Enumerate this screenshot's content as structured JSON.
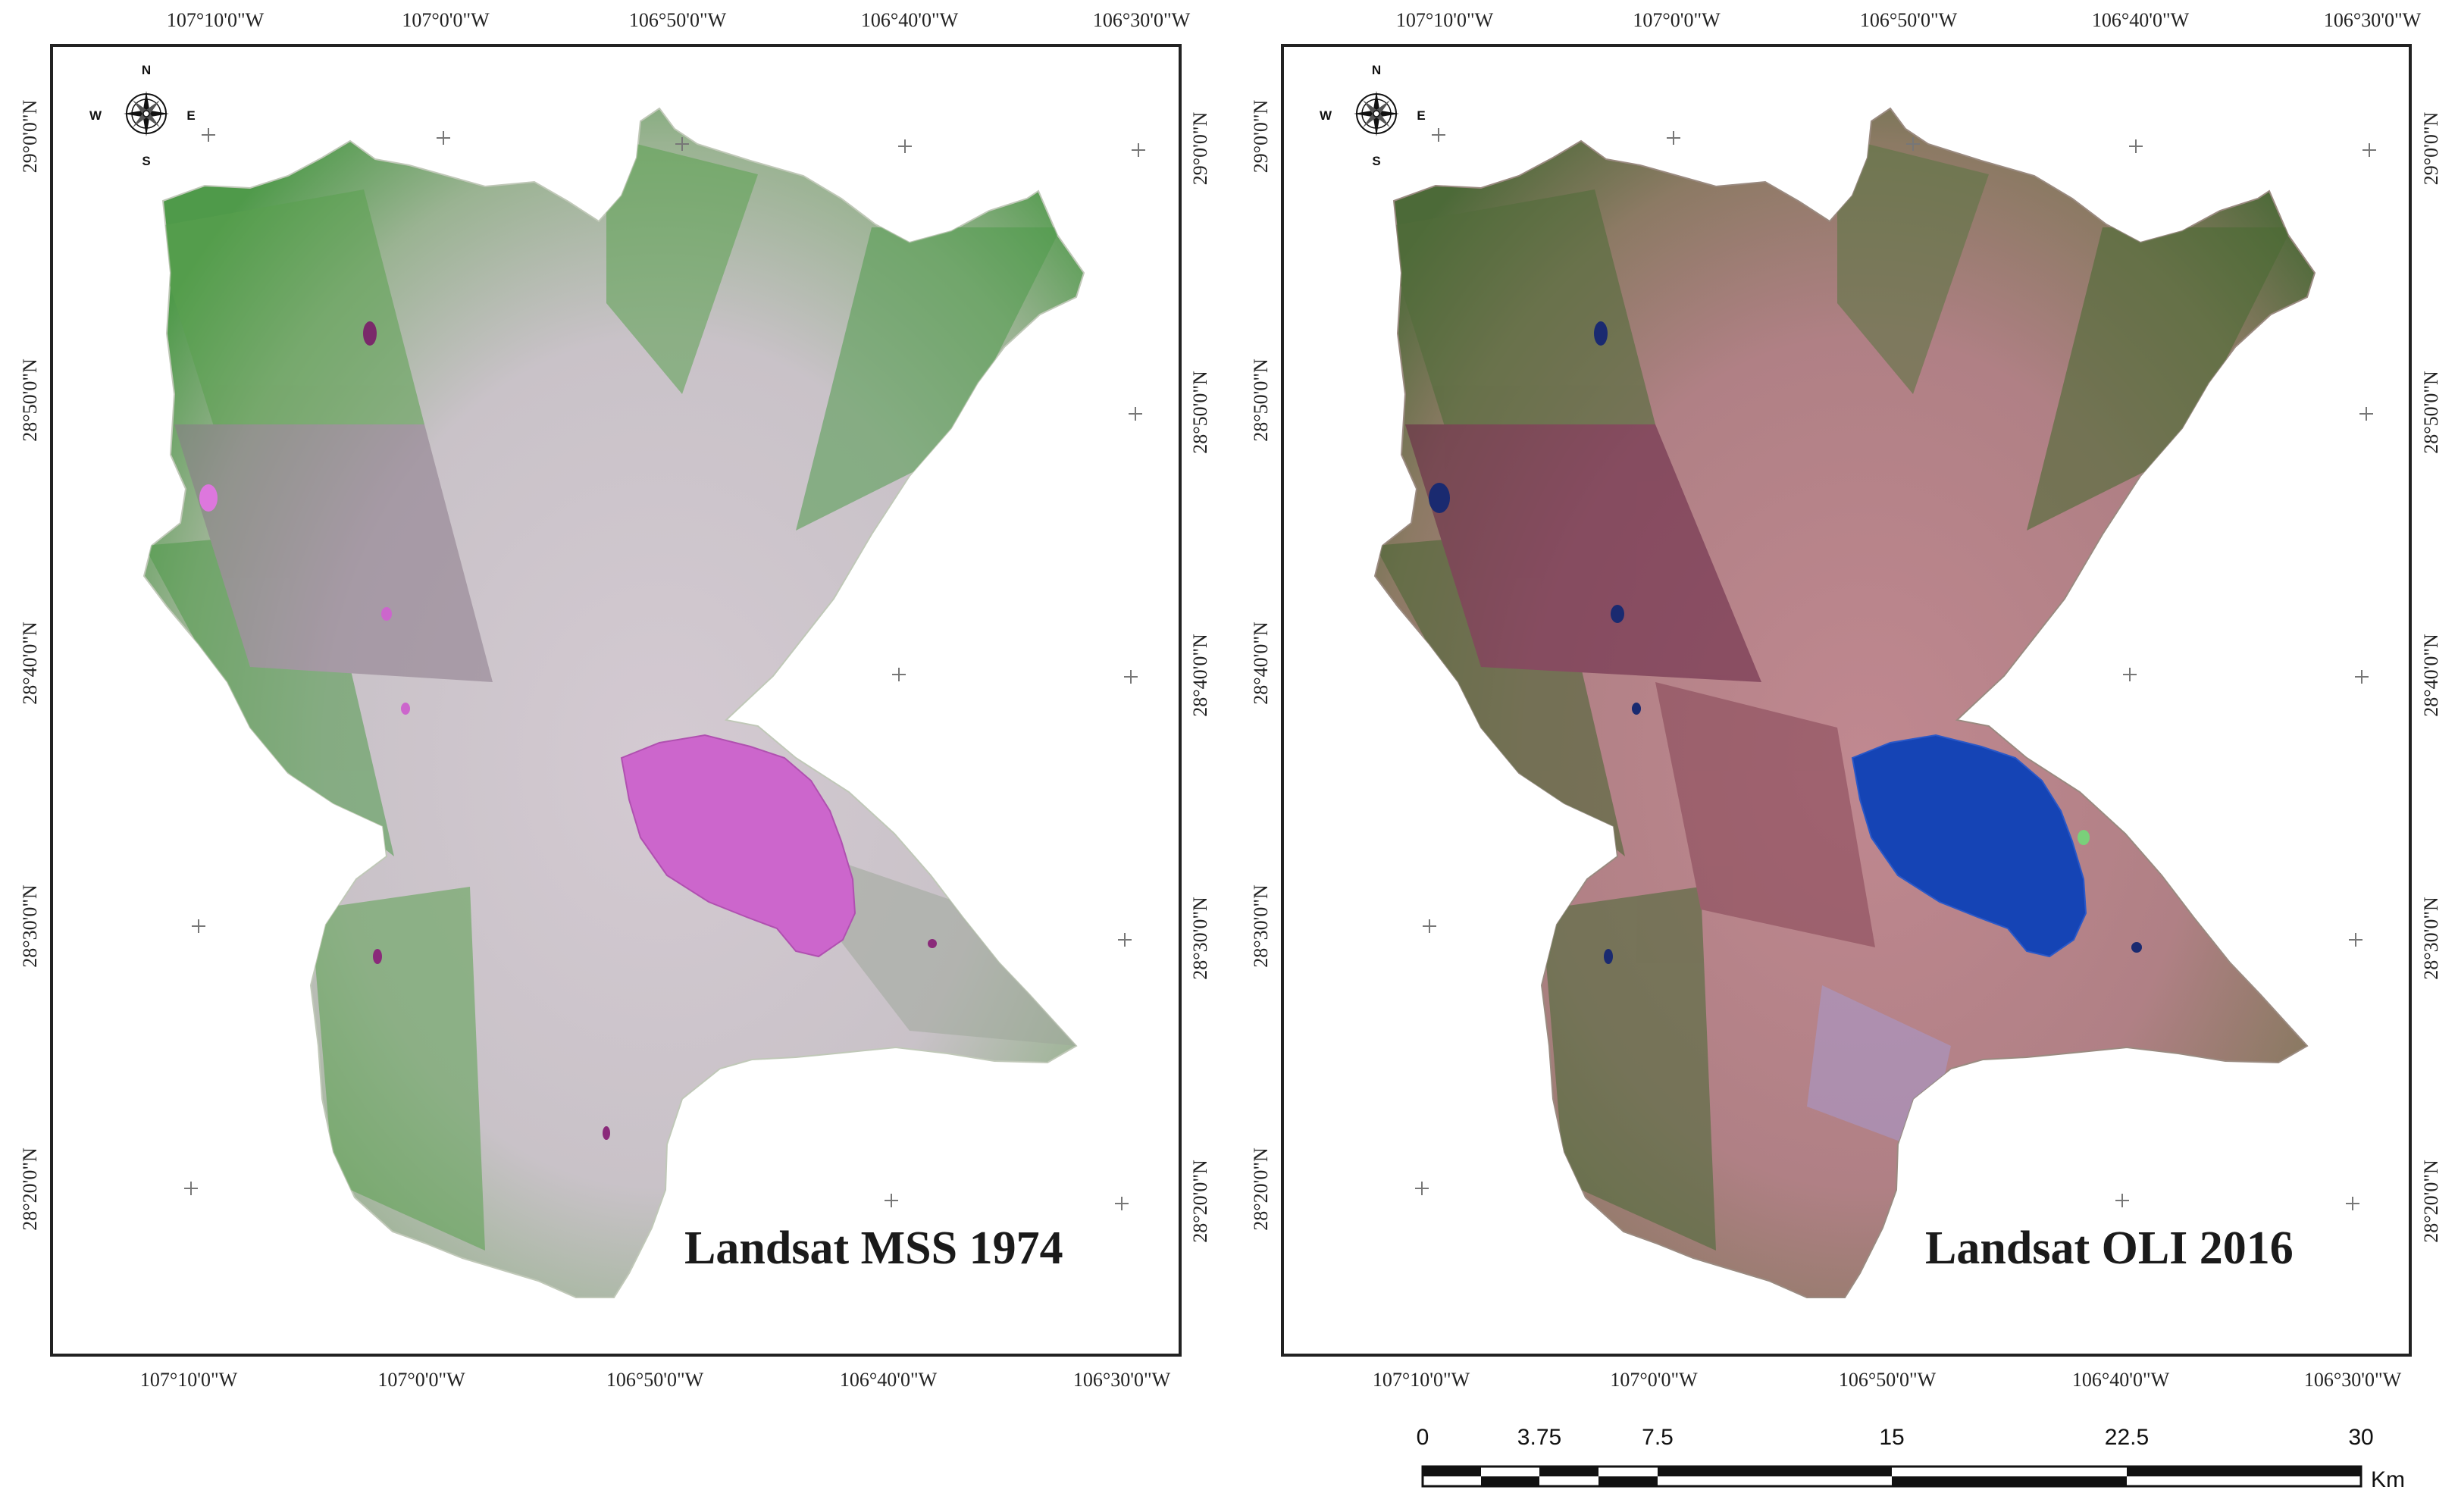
{
  "left_map": {
    "label": "Landsat MSS 1974",
    "top_ticks": [
      "107°10'0\"W",
      "107°0'0\"W",
      "106°50'0\"W",
      "106°40'0\"W",
      "106°30'0\"W"
    ],
    "bottom_ticks": [
      "107°10'0\"W",
      "107°0'0\"W",
      "106°50'0\"W",
      "106°40'0\"W",
      "106°30'0\"W"
    ],
    "left_ticks": [
      "29°0'0\"N",
      "28°50'0\"N",
      "28°40'0\"N",
      "28°30'0\"N",
      "28°20'0\"N"
    ],
    "right_ticks": [
      "29°0'0\"N",
      "28°50'0\"N",
      "28°40'0\"N",
      "28°30'0\"N",
      "28°20'0\"N"
    ]
  },
  "right_map": {
    "label": "Landsat OLI 2016",
    "top_ticks": [
      "107°10'0\"W",
      "107°0'0\"W",
      "106°50'0\"W",
      "106°40'0\"W",
      "106°30'0\"W"
    ],
    "bottom_ticks": [
      "107°10'0\"W",
      "107°0'0\"W",
      "106°50'0\"W",
      "106°40'0\"W",
      "106°30'0\"W"
    ],
    "left_ticks": [
      "29°0'0\"N",
      "28°50'0\"N",
      "28°40'0\"N",
      "28°30'0\"N",
      "28°20'0\"N"
    ],
    "right_ticks": [
      "29°0'0\"N",
      "28°50'0\"N",
      "28°40'0\"N",
      "28°30'0\"N",
      "28°20'0\"N"
    ]
  },
  "compass": {
    "n": "N",
    "s": "S",
    "e": "E",
    "w": "W"
  },
  "scale_bar": {
    "labels": [
      "0",
      "3.75",
      "7.5",
      "15",
      "22.5",
      "30"
    ],
    "unit": "Km"
  },
  "colors": {
    "mss_vegetation": "#4f9a4a",
    "mss_land": "#c8c0c8",
    "mss_lake": "#cc66cc",
    "oli_vegetation": "#4f6e3a",
    "oli_land": "#b88a8e",
    "oli_lake": "#1544b5"
  }
}
